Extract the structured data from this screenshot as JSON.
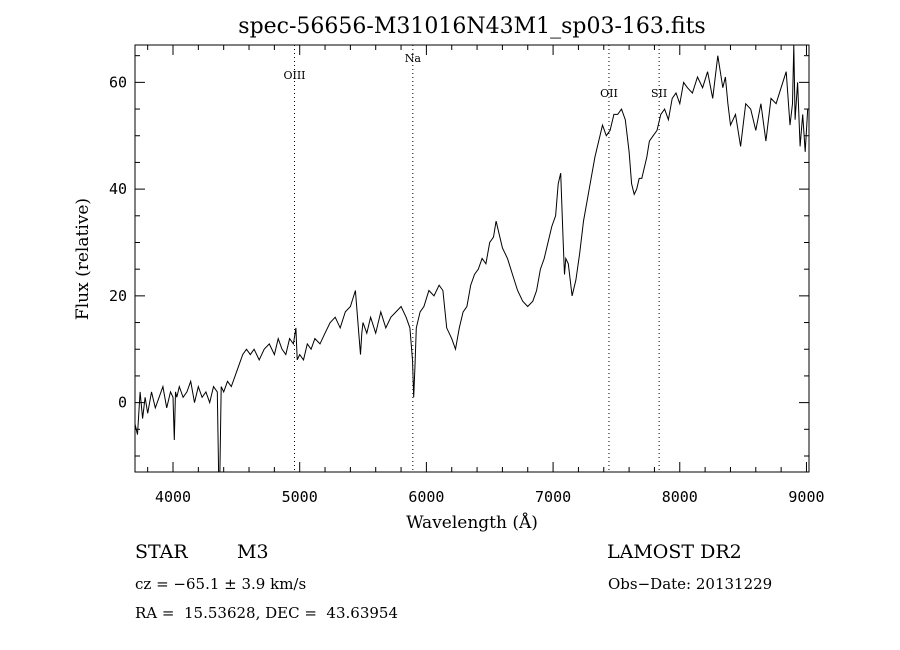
{
  "chart_data": {
    "type": "line",
    "title": "spec-56656-M31016N43M1_sp03-163.fits",
    "xlabel": "Wavelength (Å)",
    "ylabel": "Flux (relative)",
    "xlim": [
      3700,
      9020
    ],
    "ylim": [
      -13,
      67
    ],
    "xticks": [
      4000,
      5000,
      6000,
      7000,
      8000,
      9000
    ],
    "yticks": [
      0,
      20,
      40,
      60
    ],
    "grid": false,
    "line_color": "#000000",
    "series": [
      {
        "x": [
          3700,
          3720,
          3740,
          3760,
          3780,
          3800,
          3830,
          3860,
          3890,
          3920,
          3950,
          3980,
          4000,
          4010,
          4020,
          4030,
          4050,
          4080,
          4110,
          4140,
          4170,
          4200,
          4230,
          4260,
          4290,
          4320,
          4350,
          4360,
          4370,
          4380,
          4400,
          4430,
          4460,
          4490,
          4520,
          4550,
          4580,
          4610,
          4640,
          4680,
          4720,
          4760,
          4800,
          4830,
          4860,
          4890,
          4920,
          4950,
          4970,
          4980,
          5000,
          5030,
          5060,
          5090,
          5120,
          5160,
          5200,
          5240,
          5280,
          5320,
          5360,
          5400,
          5440,
          5470,
          5480,
          5490,
          5500,
          5530,
          5560,
          5600,
          5640,
          5680,
          5720,
          5760,
          5800,
          5840,
          5870,
          5890,
          5900,
          5910,
          5920,
          5950,
          5980,
          6020,
          6060,
          6100,
          6130,
          6160,
          6200,
          6230,
          6260,
          6290,
          6320,
          6350,
          6380,
          6410,
          6440,
          6470,
          6500,
          6530,
          6550,
          6570,
          6600,
          6640,
          6680,
          6720,
          6760,
          6800,
          6840,
          6870,
          6900,
          6930,
          6960,
          6990,
          7020,
          7040,
          7060,
          7080,
          7090,
          7100,
          7120,
          7150,
          7180,
          7210,
          7240,
          7270,
          7300,
          7330,
          7360,
          7390,
          7420,
          7450,
          7480,
          7510,
          7540,
          7570,
          7600,
          7620,
          7640,
          7660,
          7680,
          7700,
          7720,
          7740,
          7760,
          7790,
          7820,
          7850,
          7880,
          7910,
          7940,
          7970,
          8000,
          8030,
          8060,
          8100,
          8140,
          8180,
          8220,
          8260,
          8300,
          8340,
          8360,
          8380,
          8400,
          8440,
          8480,
          8520,
          8560,
          8600,
          8640,
          8680,
          8720,
          8760,
          8800,
          8840,
          8870,
          8890,
          8900,
          8910,
          8930,
          8950,
          8970,
          8990,
          9010
        ],
        "y": [
          -4,
          -6,
          2,
          -3,
          1,
          -2,
          2,
          -1,
          1,
          3,
          -1,
          2,
          1,
          -7,
          2,
          1,
          3,
          1,
          2,
          4,
          0,
          3,
          1,
          2,
          0,
          3,
          2,
          -13,
          -13,
          3,
          2,
          4,
          3,
          5,
          7,
          9,
          10,
          9,
          10,
          8,
          10,
          11,
          9,
          12,
          10,
          9,
          12,
          11,
          14,
          8,
          9,
          8,
          11,
          10,
          12,
          11,
          13,
          15,
          16,
          14,
          17,
          18,
          21,
          12,
          9,
          13,
          15,
          13,
          16,
          13,
          17,
          14,
          16,
          17,
          18,
          16,
          14,
          8,
          1,
          7,
          14,
          17,
          18,
          21,
          20,
          22,
          21,
          14,
          12,
          10,
          14,
          17,
          18,
          22,
          24,
          25,
          27,
          26,
          30,
          31,
          34,
          32,
          29,
          27,
          24,
          21,
          19,
          18,
          19,
          21,
          25,
          27,
          30,
          33,
          35,
          41,
          43,
          30,
          24,
          27,
          26,
          20,
          23,
          28,
          34,
          38,
          42,
          46,
          49,
          52,
          50,
          51,
          54,
          54,
          55,
          53,
          47,
          41,
          39,
          40,
          42,
          42,
          44,
          46,
          49,
          50,
          51,
          54,
          55,
          53,
          57,
          58,
          56,
          60,
          59,
          58,
          61,
          59,
          62,
          57,
          65,
          59,
          61,
          56,
          52,
          54,
          48,
          56,
          55,
          51,
          56,
          49,
          57,
          56,
          59,
          62,
          52,
          56,
          67,
          53,
          60,
          48,
          54,
          47,
          55
        ]
      }
    ],
    "reference_lines": [
      {
        "label": "OIII",
        "x": 4959
      },
      {
        "label": "Na",
        "x": 5893
      },
      {
        "label": "OII",
        "x": 7441
      },
      {
        "label": "SII",
        "x": 7837
      }
    ]
  },
  "info": {
    "class_label": "STAR",
    "subclass": "M3",
    "survey": "LAMOST DR2",
    "velocity": "cz = −65.1 ± 3.9 km/s",
    "obs_date": "Obs−Date: 20131229",
    "coords": "RA =  15.53628, DEC =  43.63954"
  }
}
